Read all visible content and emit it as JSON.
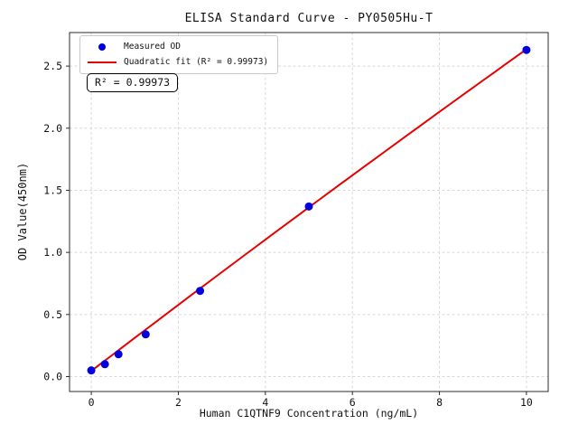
{
  "chart_data": {
    "type": "scatter",
    "title": "ELISA Standard Curve - PY0505Hu-T",
    "xlabel": "Human C1QTNF9 Concentration (ng/mL)",
    "ylabel": "OD Value(450nm)",
    "xlim": [
      -0.5,
      10.5
    ],
    "ylim": [
      -0.12,
      2.77
    ],
    "xticks": [
      0,
      2,
      4,
      6,
      8,
      10
    ],
    "xtick_labels": [
      "0",
      "2",
      "4",
      "6",
      "8",
      "10"
    ],
    "yticks": [
      0.0,
      0.5,
      1.0,
      1.5,
      2.0,
      2.5
    ],
    "ytick_labels": [
      "0.0",
      "0.5",
      "1.0",
      "1.5",
      "2.0",
      "2.5"
    ],
    "grid": true,
    "grid_style": "dashed",
    "legend_position": "upper-left",
    "series": [
      {
        "name": "Measured OD",
        "type": "scatter",
        "color": "#0000dd",
        "x": [
          0,
          0.3125,
          0.625,
          1.25,
          2.5,
          5,
          10
        ],
        "y": [
          0.05,
          0.1,
          0.18,
          0.34,
          0.69,
          1.37,
          2.63
        ]
      },
      {
        "name": "Quadratic fit (R² = 0.99973)",
        "type": "line",
        "color": "#e60000",
        "fit": {
          "kind": "quadratic",
          "a": 0.045,
          "b": 0.268,
          "c": -0.0009,
          "x_min": 0,
          "x_max": 10
        }
      }
    ],
    "annotation": {
      "text": "R² = 0.99973",
      "r_squared": 0.99973
    }
  }
}
